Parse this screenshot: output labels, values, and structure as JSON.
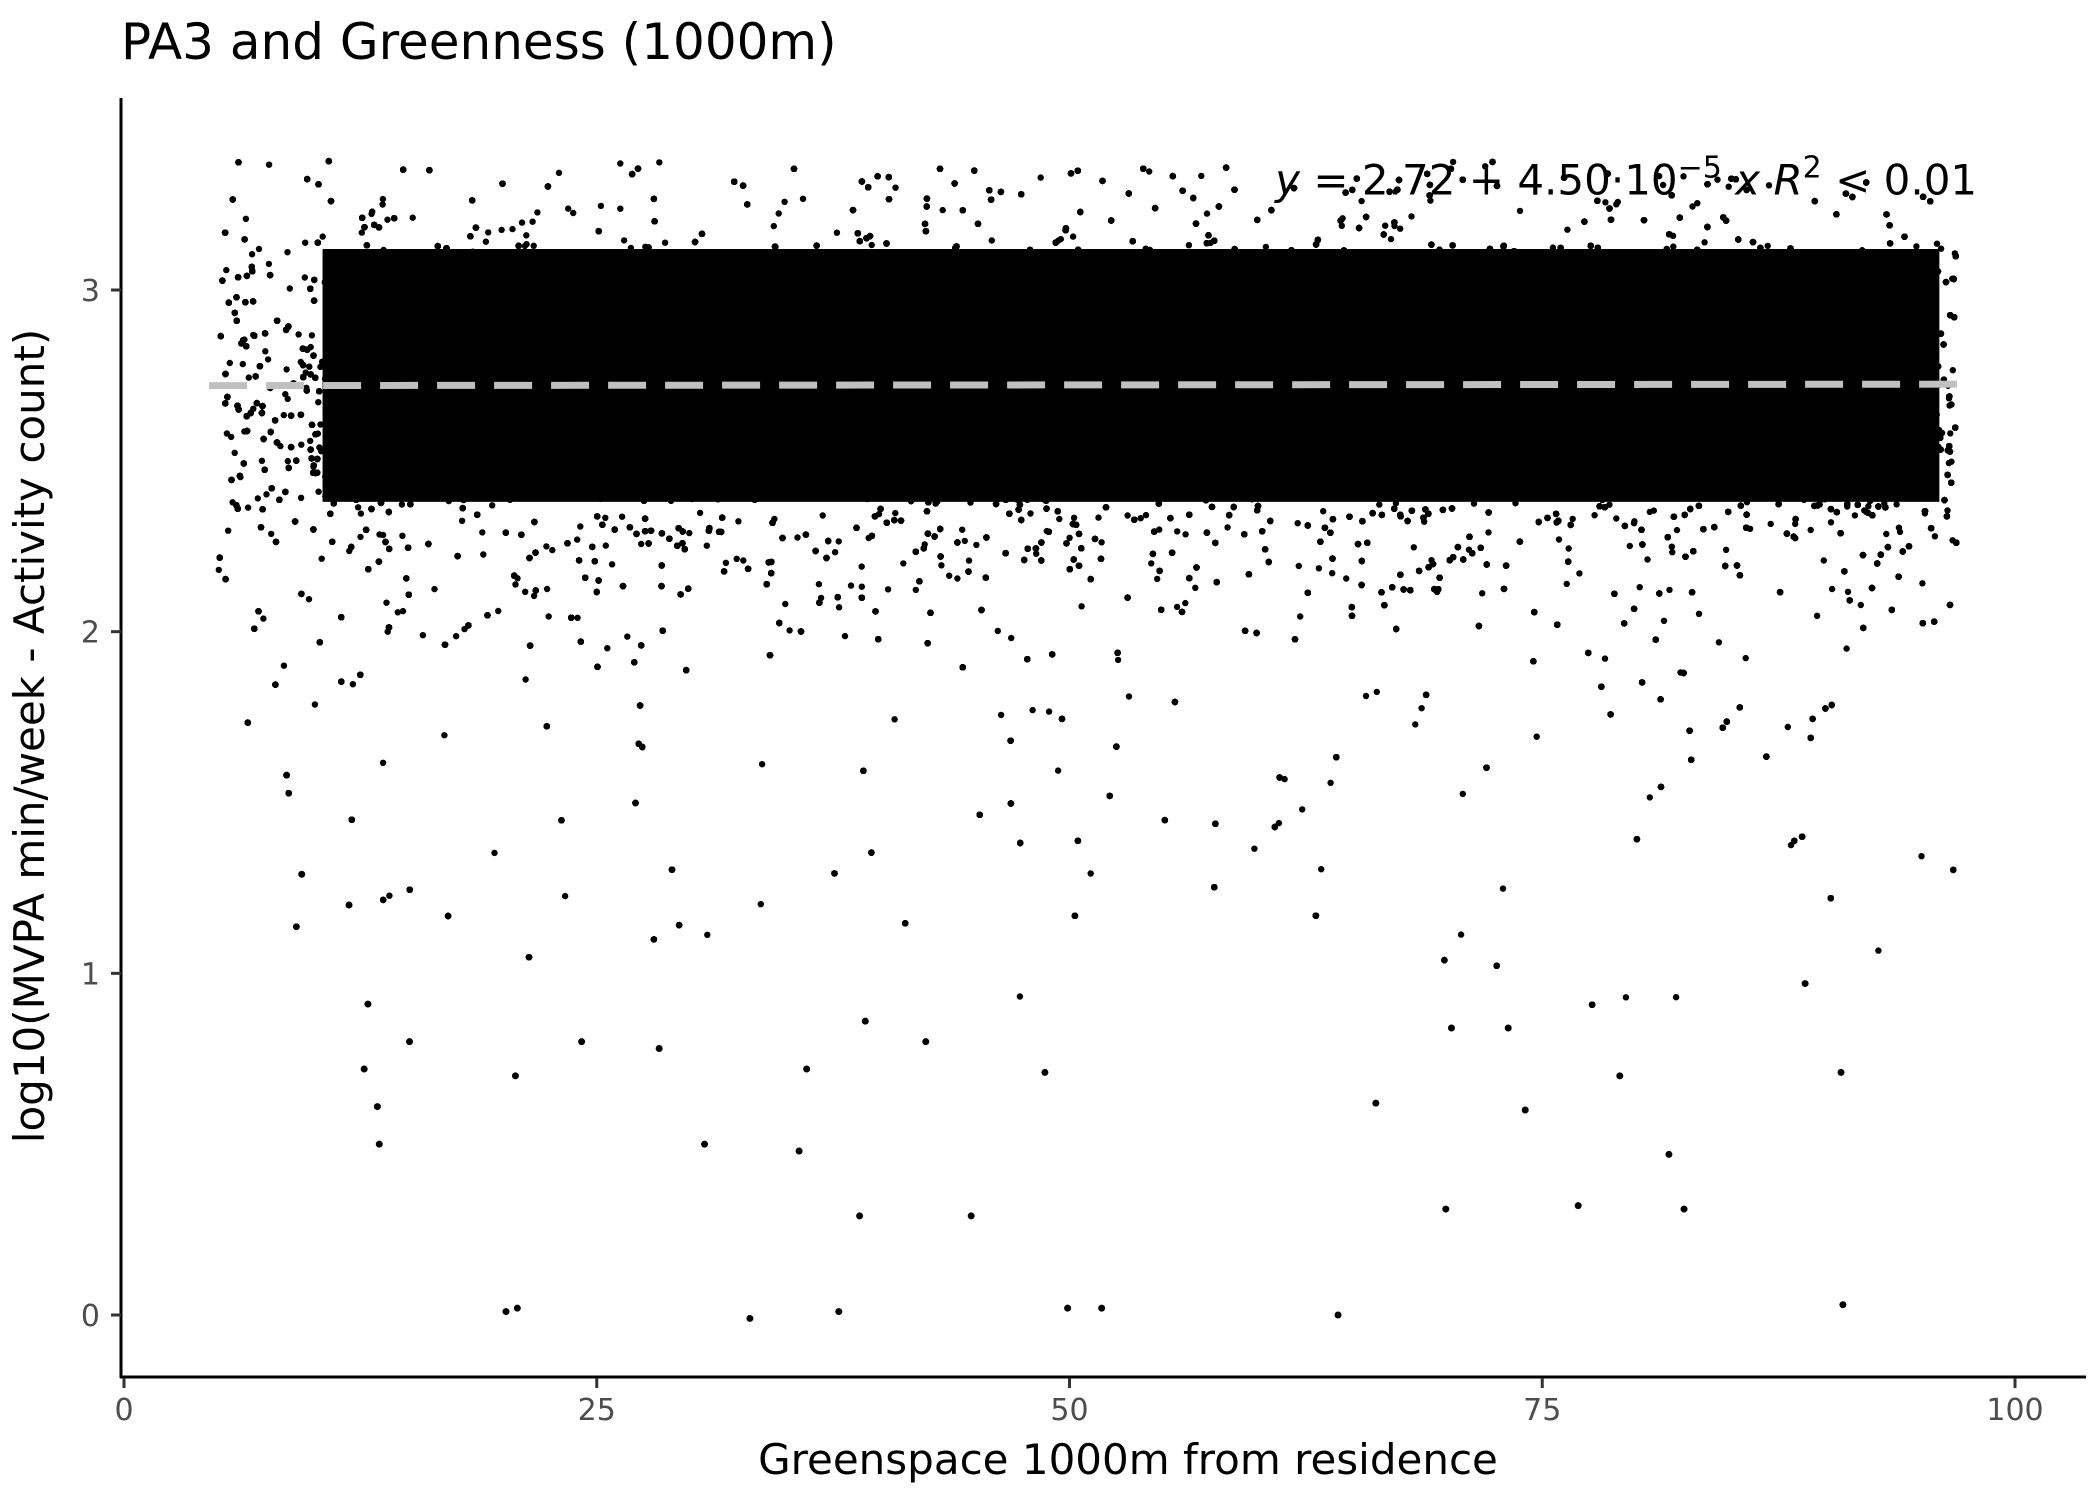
{
  "chart_data": {
    "type": "scatter",
    "title": "PA3 and Greenness (1000m)",
    "xlabel": "Greenspace 1000m from residence",
    "ylabel": "log10(MVPA min/week - Activity count)",
    "xlim": [
      -0.5,
      103
    ],
    "ylim": [
      -0.17,
      3.55
    ],
    "x_ticks": [
      0,
      25,
      50,
      75,
      100
    ],
    "y_ticks": [
      0,
      1,
      2,
      3
    ],
    "x_tick_labels": [
      "0",
      "25",
      "50",
      "75",
      "100"
    ],
    "y_tick_labels": [
      "0",
      "1",
      "2",
      "3"
    ],
    "grid": false,
    "legend": "none",
    "point_color": "#000000",
    "regression_line": {
      "style": "dashed",
      "color": "#c0c0c0",
      "intercept": 2.72,
      "slope": 4.5e-05,
      "x_range": [
        4.5,
        97.5
      ]
    },
    "annotation": {
      "parts": [
        {
          "text": "y",
          "italic": true
        },
        {
          "text": " = 2.72 + 4.50·10",
          "italic": false
        },
        {
          "text": "−5",
          "italic": false,
          "superscript": true
        },
        {
          "text": " x",
          "italic": true
        },
        {
          "text": "  ",
          "italic": false
        },
        {
          "text": "R",
          "italic": true
        },
        {
          "text": "2",
          "italic": false,
          "superscript": true
        },
        {
          "text": " < 0.01",
          "italic": false
        }
      ],
      "x": 98,
      "y": 3.28,
      "anchor": "end"
    },
    "distribution": {
      "x_range": [
        5,
        99
      ],
      "dense_y_center": 2.72,
      "dense_y_spread": 0.28,
      "y_max": 3.38,
      "approx_n_points": 60000
    },
    "outlier_points": [
      {
        "x": 20.2,
        "y": 0.01
      },
      {
        "x": 20.8,
        "y": 0.02
      },
      {
        "x": 33.1,
        "y": -0.01
      },
      {
        "x": 37.8,
        "y": 0.01
      },
      {
        "x": 49.9,
        "y": 0.02
      },
      {
        "x": 51.7,
        "y": 0.02
      },
      {
        "x": 64.2,
        "y": 0.0
      },
      {
        "x": 90.9,
        "y": 0.03
      },
      {
        "x": 13.5,
        "y": 0.5
      },
      {
        "x": 13.4,
        "y": 0.61
      },
      {
        "x": 12.7,
        "y": 0.72
      },
      {
        "x": 12.9,
        "y": 0.91
      },
      {
        "x": 15.1,
        "y": 0.8
      },
      {
        "x": 20.7,
        "y": 0.7
      },
      {
        "x": 30.7,
        "y": 0.5
      },
      {
        "x": 35.7,
        "y": 0.48
      },
      {
        "x": 38.9,
        "y": 0.29
      },
      {
        "x": 44.8,
        "y": 0.29
      },
      {
        "x": 69.9,
        "y": 0.31
      },
      {
        "x": 76.9,
        "y": 0.32
      },
      {
        "x": 81.7,
        "y": 0.47
      },
      {
        "x": 82.5,
        "y": 0.31
      },
      {
        "x": 79.1,
        "y": 0.7
      },
      {
        "x": 74.1,
        "y": 0.6
      },
      {
        "x": 66.2,
        "y": 0.62
      },
      {
        "x": 90.8,
        "y": 0.71
      },
      {
        "x": 24.2,
        "y": 0.8
      },
      {
        "x": 28.3,
        "y": 0.78
      },
      {
        "x": 36.1,
        "y": 0.72
      },
      {
        "x": 42.4,
        "y": 0.8
      },
      {
        "x": 48.7,
        "y": 0.71
      },
      {
        "x": 39.2,
        "y": 0.86
      },
      {
        "x": 70.2,
        "y": 0.84
      },
      {
        "x": 73.2,
        "y": 0.84
      },
      {
        "x": 88.9,
        "y": 0.97
      },
      {
        "x": 11.9,
        "y": 1.2
      },
      {
        "x": 9.4,
        "y": 1.29
      },
      {
        "x": 8.6,
        "y": 1.58
      }
    ]
  }
}
